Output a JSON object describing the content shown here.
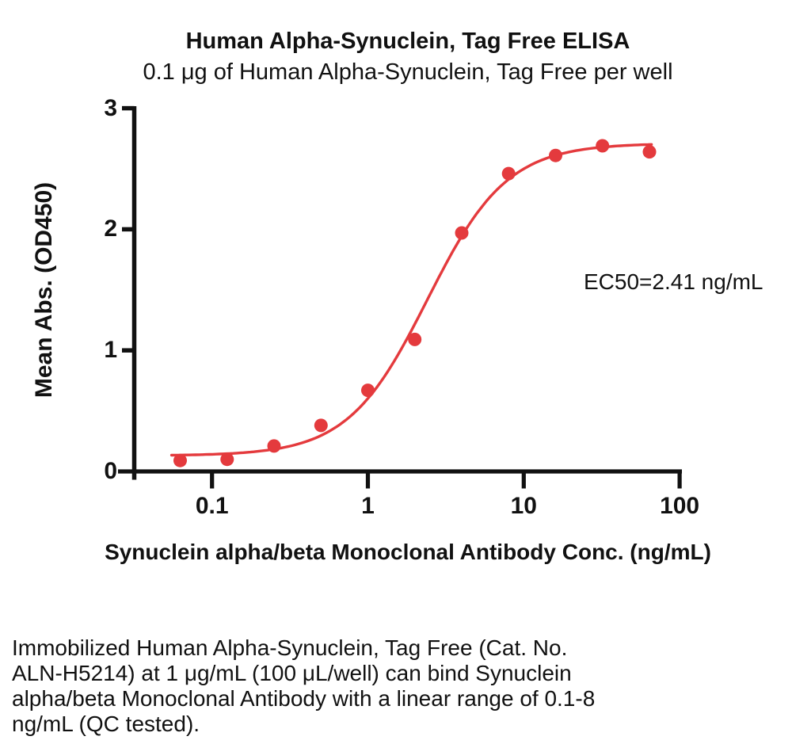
{
  "chart_data": {
    "type": "scatter",
    "title": "Human Alpha-Synuclein, Tag Free ELISA",
    "subtitle": "0.1 μg of Human Alpha-Synuclein, Tag Free per well",
    "xlabel": "Synuclein alpha/beta Monoclonal Antibody Conc. (ng/mL)",
    "ylabel": "Mean Abs. (OD450)",
    "annotation": "EC50=2.41 ng/mL",
    "x_scale": "log10",
    "xlim": [
      0.04,
      110
    ],
    "ylim": [
      0,
      3
    ],
    "grid": false,
    "legend": "none",
    "x_ticks": [
      {
        "value": 0.1,
        "label": "0.1"
      },
      {
        "value": 1,
        "label": "1"
      },
      {
        "value": 10,
        "label": "10"
      },
      {
        "value": 100,
        "label": "100"
      }
    ],
    "y_ticks": [
      {
        "value": 0,
        "label": "0"
      },
      {
        "value": 1,
        "label": "1"
      },
      {
        "value": 2,
        "label": "2"
      },
      {
        "value": 3,
        "label": "3"
      }
    ],
    "series": [
      {
        "marker": "circle",
        "color": "#E43A3D",
        "x": [
          0.0625,
          0.125,
          0.25,
          0.5,
          1,
          2,
          4,
          8,
          16,
          32,
          64
        ],
        "y": [
          0.09,
          0.1,
          0.21,
          0.38,
          0.67,
          1.09,
          1.97,
          2.46,
          2.61,
          2.69,
          2.64
        ]
      }
    ],
    "fit_curve": {
      "model": "4PL",
      "bottom": 0.13,
      "top": 2.71,
      "ec50": 2.41,
      "hill": 1.7,
      "x_range": [
        0.055,
        66
      ],
      "color": "#E43A3D"
    }
  },
  "caption": {
    "lines": [
      "Immobilized Human Alpha-Synuclein, Tag Free (Cat. No.",
      "ALN-H5214) at 1 μg/mL (100 μL/well) can bind Synuclein",
      "alpha/beta Monoclonal Antibody with a linear range of 0.1-8",
      "ng/mL (QC tested)."
    ]
  },
  "colors": {
    "axis": "#111111",
    "text": "#111111",
    "series_red": "#E43A3D",
    "background": "#FFFFFF"
  }
}
